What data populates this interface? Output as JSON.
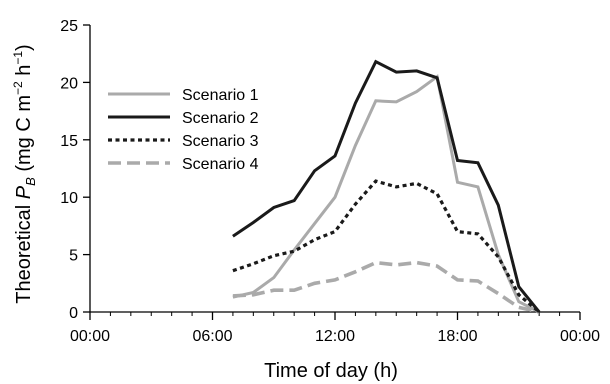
{
  "chart_data": {
    "type": "line",
    "xlabel": "Time of day (h)",
    "ylabel": {
      "main": "Theoretical ",
      "symbol": "P",
      "subscript": "B",
      "units_open": " (mg C m",
      "exp1": "−2",
      "units_mid": " h",
      "exp2": "−1",
      "units_close": ")"
    },
    "xlim": [
      0,
      24
    ],
    "ylim": [
      0,
      25
    ],
    "x_ticks": [
      {
        "value": 0,
        "label": "00:00"
      },
      {
        "value": 6,
        "label": "06:00"
      },
      {
        "value": 12,
        "label": "12:00"
      },
      {
        "value": 18,
        "label": "18:00"
      },
      {
        "value": 24,
        "label": "00:00"
      }
    ],
    "x_minor_step": 1,
    "y_ticks": [
      {
        "value": 0,
        "label": "0"
      },
      {
        "value": 5,
        "label": "5"
      },
      {
        "value": 10,
        "label": "10"
      },
      {
        "value": 15,
        "label": "15"
      },
      {
        "value": 20,
        "label": "20"
      },
      {
        "value": 25,
        "label": "25"
      }
    ],
    "grid": false,
    "legend": "upper-left",
    "x": [
      7,
      8,
      9,
      10,
      11,
      12,
      13,
      14,
      15,
      16,
      17,
      18,
      19,
      20,
      21,
      22
    ],
    "series": [
      {
        "name": "Scenario 1",
        "color": "#aaaaaa",
        "dash": "solid",
        "values": [
          1.3,
          1.7,
          3.0,
          5.4,
          7.7,
          10.0,
          14.5,
          18.4,
          18.3,
          19.2,
          20.5,
          11.3,
          10.9,
          5.0,
          0.9,
          0.0
        ]
      },
      {
        "name": "Scenario 2",
        "color": "#1a1a1a",
        "dash": "solid",
        "values": [
          6.6,
          7.8,
          9.1,
          9.7,
          12.3,
          13.6,
          18.2,
          21.8,
          20.9,
          21.0,
          20.4,
          13.2,
          13.0,
          9.3,
          2.2,
          0.0
        ]
      },
      {
        "name": "Scenario 3",
        "color": "#1a1a1a",
        "dash": "dotted",
        "values": [
          3.6,
          4.2,
          4.9,
          5.3,
          6.3,
          7.0,
          9.4,
          11.4,
          10.9,
          11.2,
          10.3,
          7.0,
          6.8,
          4.8,
          1.5,
          0.0
        ]
      },
      {
        "name": "Scenario 4",
        "color": "#aaaaaa",
        "dash": "dashed",
        "values": [
          1.4,
          1.5,
          1.9,
          1.9,
          2.5,
          2.8,
          3.5,
          4.3,
          4.1,
          4.3,
          4.0,
          2.8,
          2.7,
          1.6,
          0.4,
          0.0
        ]
      }
    ]
  }
}
